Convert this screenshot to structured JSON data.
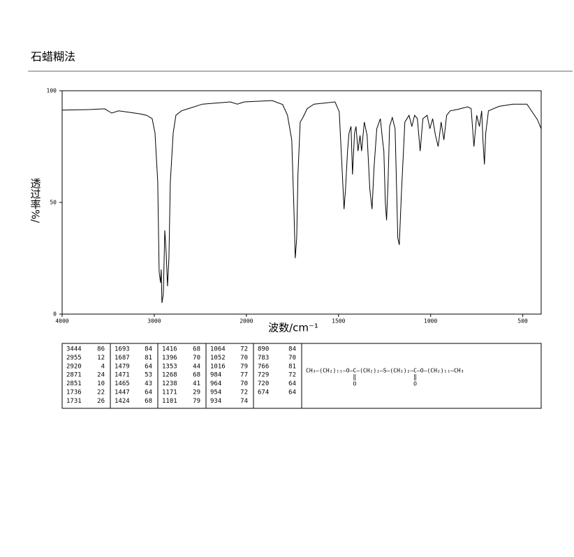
{
  "header": {
    "title": "石蜡糊法"
  },
  "chart_data": {
    "type": "line",
    "xlabel": "波数/cm⁻¹",
    "ylabel": "透过率%/",
    "xlim": [
      4000,
      400
    ],
    "ylim": [
      0,
      100
    ],
    "xticks": [
      4000,
      3000,
      2000,
      1500,
      1000,
      500
    ],
    "yticks": [
      0,
      50,
      100
    ],
    "color": "#000000",
    "x": [
      4000,
      3689,
      3538,
      3462,
      3386,
      3159,
      3083,
      3023,
      2992,
      2962,
      2947,
      2932,
      2924,
      2917,
      2902,
      2886,
      2871,
      2856,
      2841,
      2826,
      2795,
      2765,
      2705,
      2629,
      2477,
      2174,
      2098,
      2023,
      1860,
      1803,
      1777,
      1754,
      1742,
      1735,
      1727,
      1720,
      1708,
      1693,
      1670,
      1633,
      1519,
      1496,
      1481,
      1470,
      1462,
      1451,
      1443,
      1432,
      1424,
      1413,
      1405,
      1394,
      1383,
      1375,
      1360,
      1345,
      1330,
      1318,
      1307,
      1292,
      1273,
      1261,
      1254,
      1246,
      1239,
      1231,
      1223,
      1208,
      1193,
      1178,
      1170,
      1159,
      1140,
      1117,
      1102,
      1087,
      1072,
      1057,
      1042,
      1019,
      1004,
      989,
      974,
      959,
      943,
      928,
      913,
      894,
      856,
      837,
      799,
      780,
      765,
      750,
      735,
      723,
      716,
      708,
      701,
      686,
      629,
      553,
      477,
      420,
      400
    ],
    "y": [
      91.3,
      91.6,
      91.9,
      90,
      91,
      89.7,
      89,
      87.5,
      81,
      59,
      19,
      14,
      20,
      5,
      9,
      37.5,
      28,
      12.5,
      25,
      59,
      81,
      89,
      91,
      92,
      94,
      95,
      94,
      95,
      95.6,
      93.8,
      89,
      78,
      47,
      25,
      34,
      62.5,
      86,
      88,
      92,
      94,
      95,
      90.6,
      65.6,
      47,
      56,
      73,
      81,
      84,
      62.5,
      81,
      84,
      73,
      80,
      73,
      86,
      80,
      56,
      47,
      66,
      83,
      87.5,
      78,
      73,
      50,
      42,
      59,
      84,
      88,
      83,
      34,
      31,
      53,
      86,
      89,
      84,
      89,
      87.5,
      73,
      87.5,
      89,
      83,
      87.5,
      80,
      75,
      86,
      78,
      89,
      91,
      91.6,
      92,
      92.8,
      92,
      75,
      89,
      84,
      91,
      78,
      67,
      81,
      91,
      93,
      94,
      94,
      87,
      83
    ]
  },
  "peak_table": [
    [
      [
        3444,
        86
      ],
      [
        2955,
        12
      ],
      [
        2920,
        4
      ],
      [
        2871,
        24
      ],
      [
        2851,
        10
      ],
      [
        1736,
        22
      ],
      [
        1731,
        26
      ]
    ],
    [
      [
        1693,
        84
      ],
      [
        1687,
        81
      ],
      [
        1479,
        64
      ],
      [
        1471,
        53
      ],
      [
        1465,
        43
      ],
      [
        1447,
        64
      ],
      [
        1424,
        68
      ]
    ],
    [
      [
        1416,
        68
      ],
      [
        1396,
        70
      ],
      [
        1353,
        44
      ],
      [
        1268,
        68
      ],
      [
        1238,
        41
      ],
      [
        1171,
        29
      ],
      [
        1101,
        79
      ]
    ],
    [
      [
        1064,
        72
      ],
      [
        1052,
        70
      ],
      [
        1016,
        79
      ],
      [
        984,
        77
      ],
      [
        964,
        70
      ],
      [
        954,
        72
      ],
      [
        934,
        74
      ]
    ],
    [
      [
        890,
        84
      ],
      [
        783,
        70
      ],
      [
        766,
        81
      ],
      [
        729,
        72
      ],
      [
        720,
        64
      ],
      [
        674,
        64
      ]
    ]
  ],
  "structure": {
    "segments": [
      "CH₃—(CH₂)₁₁—O—",
      "C",
      "—(CH₂)₂—S—(CH₂)₂—",
      "C",
      "—O—(CH₂)₁₁—CH₃"
    ],
    "carbonyl_oxygen": "O"
  }
}
